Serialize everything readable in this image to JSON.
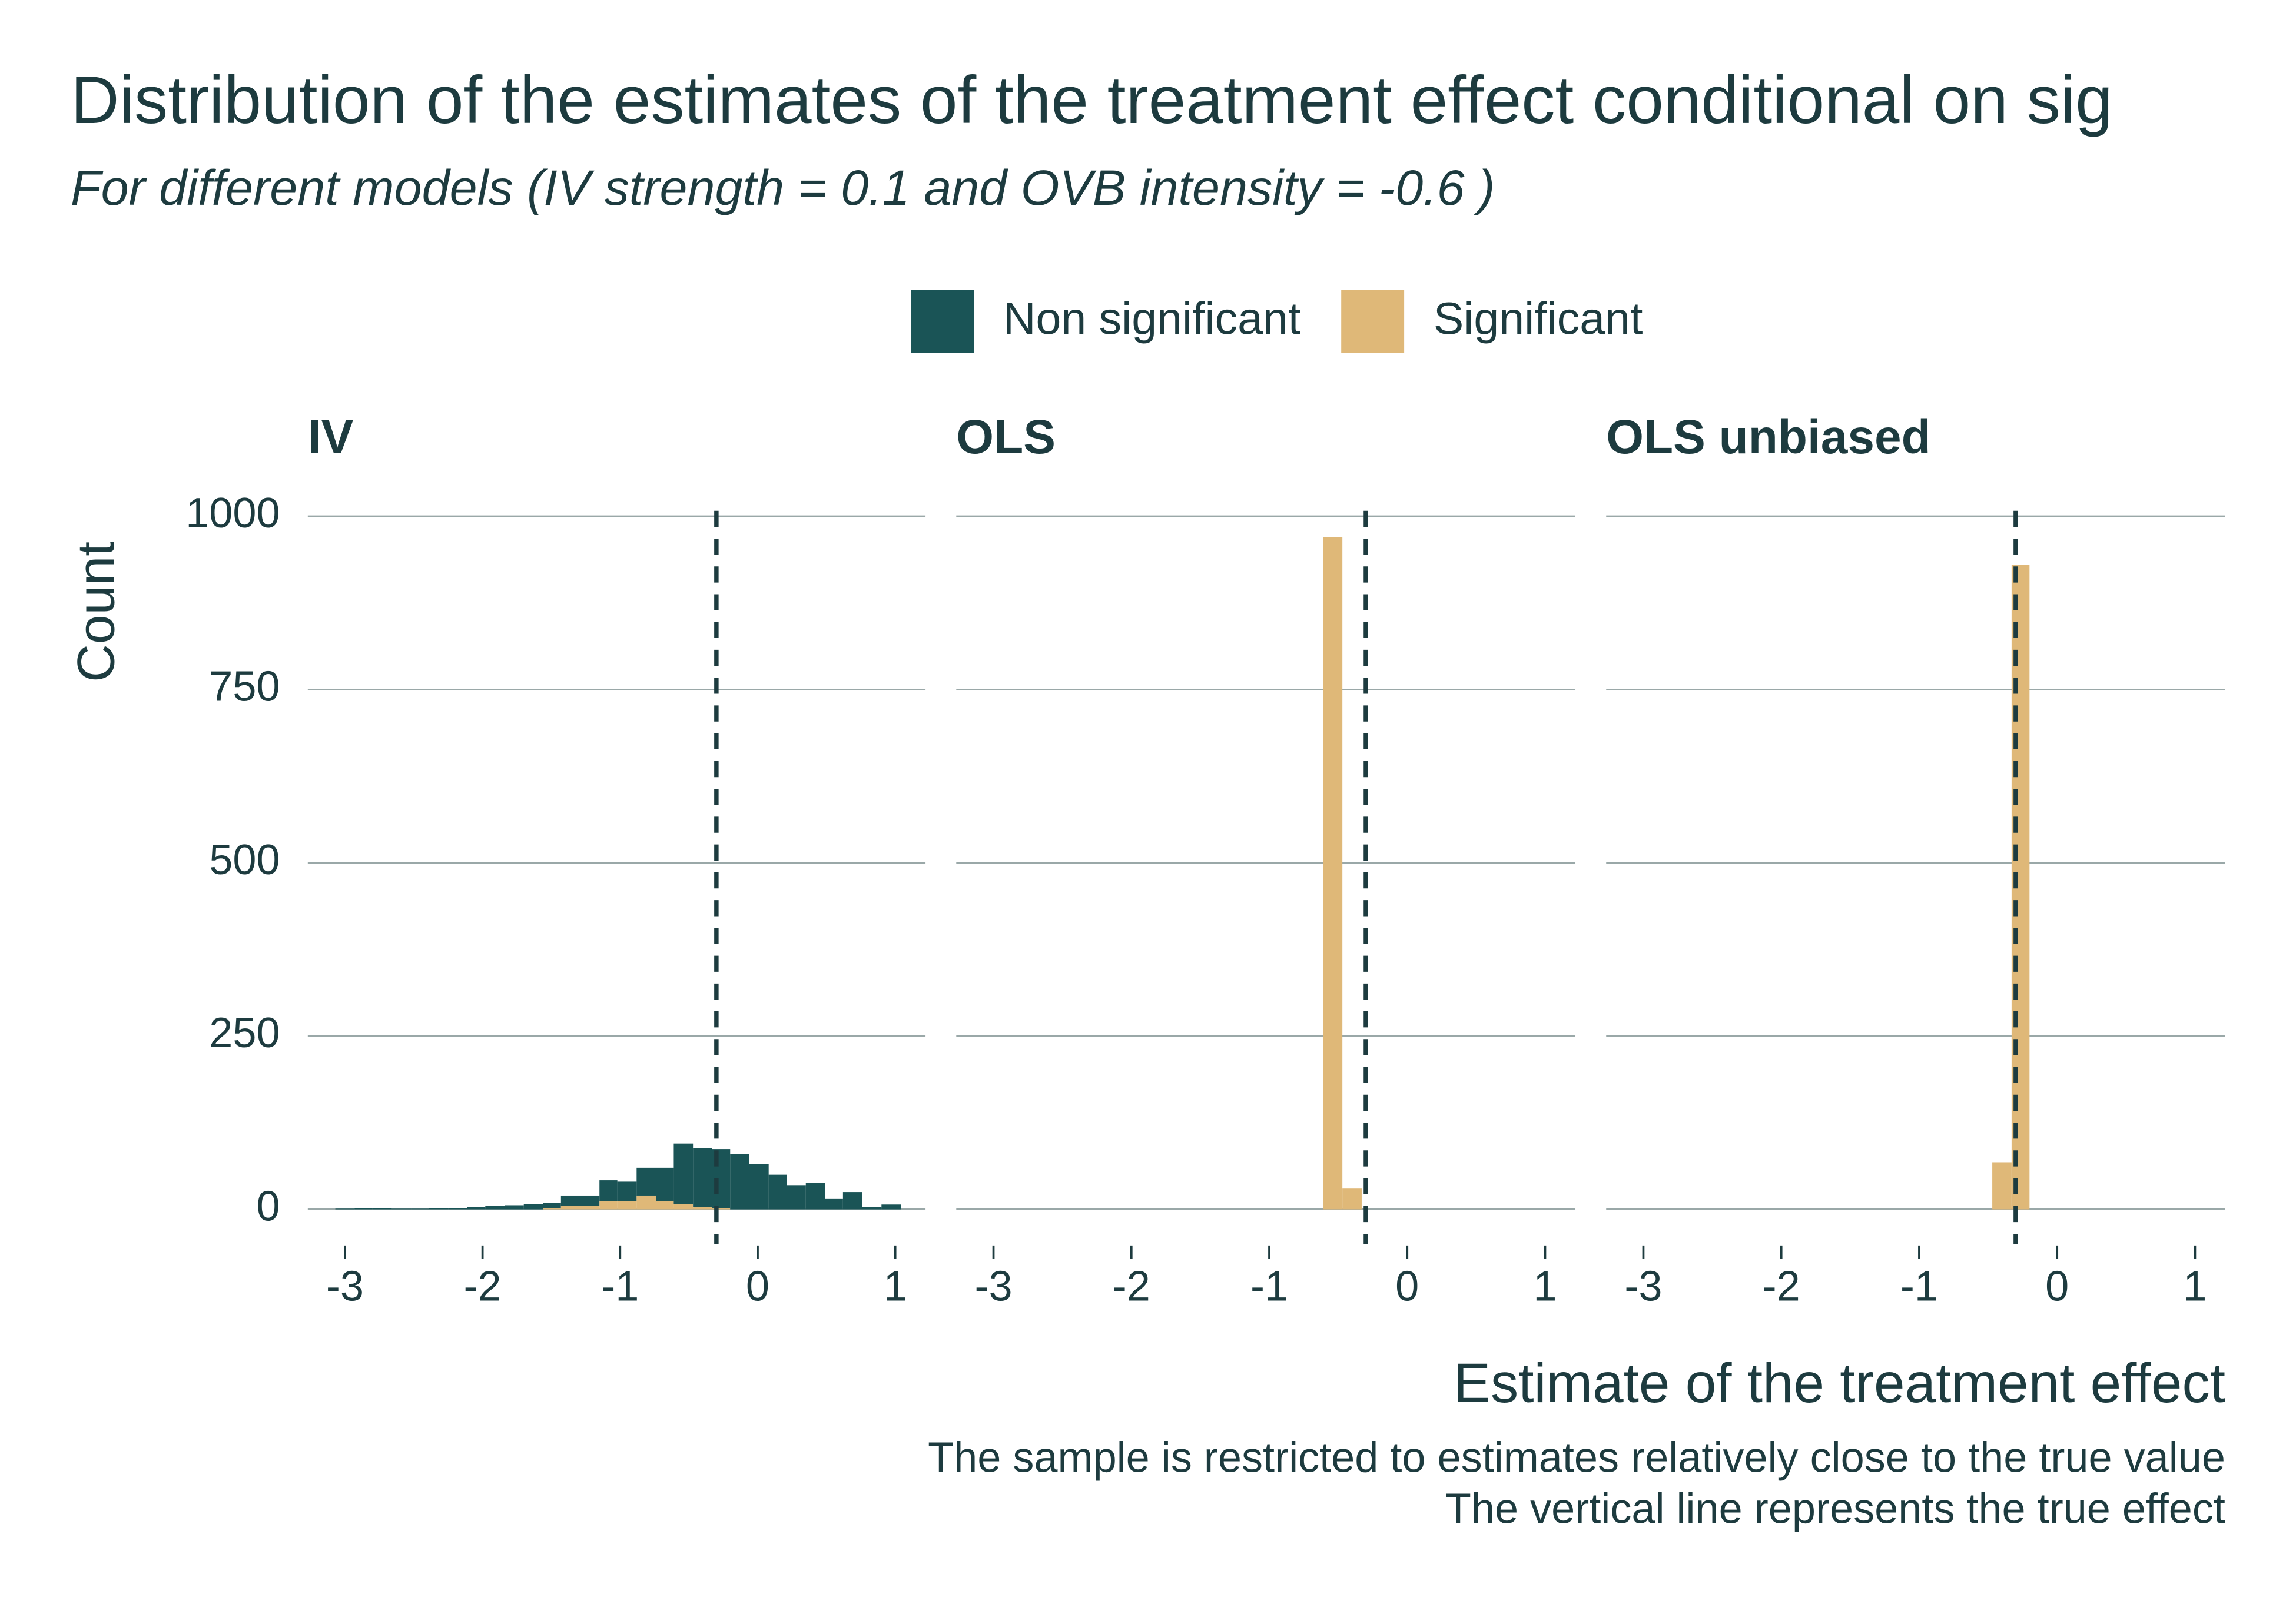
{
  "chart_data": {
    "type": "histogram",
    "title": "Distribution of the estimates of the treatment effect conditional on sig",
    "subtitle": "For different models (IV strength = 0.1 and OVB intensity =  -0.6 )",
    "xlabel": "Estimate of the treatment effect",
    "ylabel": "Count",
    "caption": [
      "The sample is restricted to estimates relatively close to the true value",
      "The vertical line represents the true effect"
    ],
    "series": [
      {
        "name": "Non significant",
        "color": "#1a5456"
      },
      {
        "name": "Significant",
        "color": "#dfb878"
      }
    ],
    "xlim": [
      -3.27,
      1.22
    ],
    "xticks": [
      -3,
      -2,
      -1,
      0,
      1
    ],
    "ylim": [
      -50,
      1008
    ],
    "yticks": [
      0,
      250,
      500,
      750,
      1000
    ],
    "grid": true,
    "facets": [
      {
        "title": "IV",
        "true_effect": -0.3,
        "bins": [
          -3.07,
          -2.93,
          -2.8,
          -2.66,
          -2.52,
          -2.39,
          -2.25,
          -2.11,
          -1.98,
          -1.84,
          -1.7,
          -1.56,
          -1.43,
          -1.29,
          -1.15,
          -1.02,
          -0.88,
          -0.74,
          -0.61,
          -0.47,
          -0.33,
          -0.2,
          -0.06,
          0.08,
          0.21,
          0.35,
          0.49,
          0.62,
          0.76,
          0.9,
          1.04
        ],
        "counts": [
          [
            1,
            2,
            2,
            1,
            1,
            2,
            2,
            3,
            5,
            6,
            8,
            7,
            15,
            15,
            30,
            28,
            40,
            48,
            87,
            85,
            85,
            80,
            65,
            50,
            35,
            38,
            15,
            25,
            3,
            7
          ],
          [
            0,
            0,
            0,
            0,
            0,
            0,
            0,
            0,
            0,
            0,
            0,
            2,
            5,
            5,
            12,
            12,
            20,
            12,
            8,
            3,
            2,
            0,
            0,
            0,
            0,
            0,
            0,
            0,
            0,
            0
          ]
        ]
      },
      {
        "title": "OLS",
        "true_effect": -0.3,
        "bins": [
          -0.61,
          -0.47,
          -0.33
        ],
        "counts": [
          [
            0,
            0
          ],
          [
            970,
            30
          ]
        ]
      },
      {
        "title": "OLS unbiased",
        "true_effect": -0.3,
        "bins": [
          -0.47,
          -0.33,
          -0.2
        ],
        "counts": [
          [
            0,
            0
          ],
          [
            68,
            930
          ]
        ]
      }
    ]
  }
}
